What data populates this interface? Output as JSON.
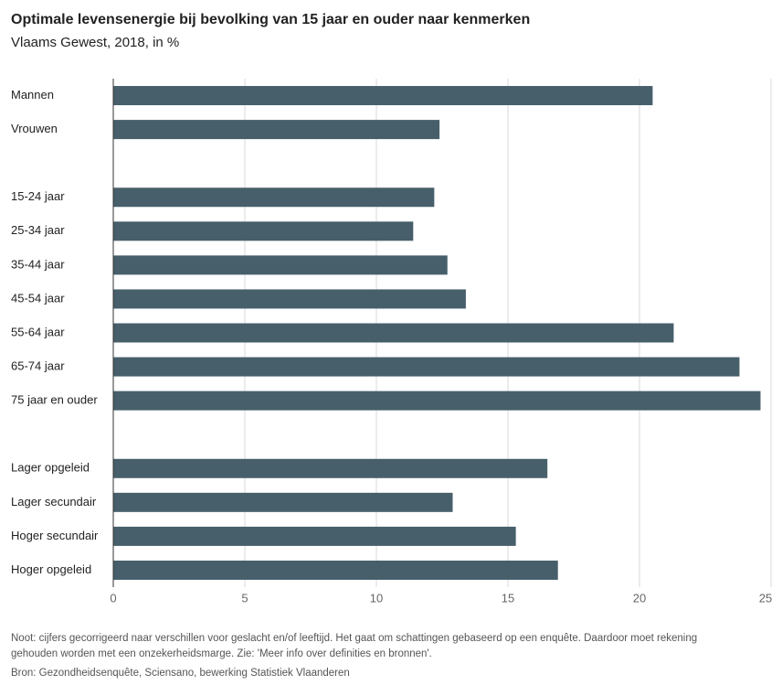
{
  "chart_data": {
    "type": "barh",
    "title": "Optimale levensenergie bij bevolking van 15 jaar en ouder naar kenmerken",
    "subtitle": "Vlaams Gewest, 2018, in %",
    "categories": [
      "Mannen",
      "Vrouwen",
      null,
      "15-24 jaar",
      "25-34 jaar",
      "35-44 jaar",
      "45-54 jaar",
      "55-64 jaar",
      "65-74 jaar",
      "75 jaar en ouder",
      null,
      "Lager opgeleid",
      "Lager secundair",
      "Hoger secundair",
      "Hoger opgeleid"
    ],
    "values": [
      20.5,
      12.4,
      null,
      12.2,
      11.4,
      12.7,
      13.4,
      21.3,
      23.8,
      24.6,
      null,
      16.5,
      12.9,
      15.3,
      16.9
    ],
    "color": "#475f6b",
    "xlim": [
      0,
      25
    ],
    "xticks": [
      0,
      5,
      10,
      15,
      20,
      25
    ],
    "grid": true,
    "footnotes": [
      "Noot: cijfers gecorrigeerd naar verschillen voor geslacht en/of leeftijd. Het gaat om schattingen gebaseerd op een enquête. Daardoor moet rekening",
      "gehouden worden met een onzekerheidsmarge. Zie: 'Meer info over definities en bronnen'.",
      "Bron: Gezondheidsenquête, Sciensano, bewerking Statistiek Vlaanderen"
    ]
  }
}
